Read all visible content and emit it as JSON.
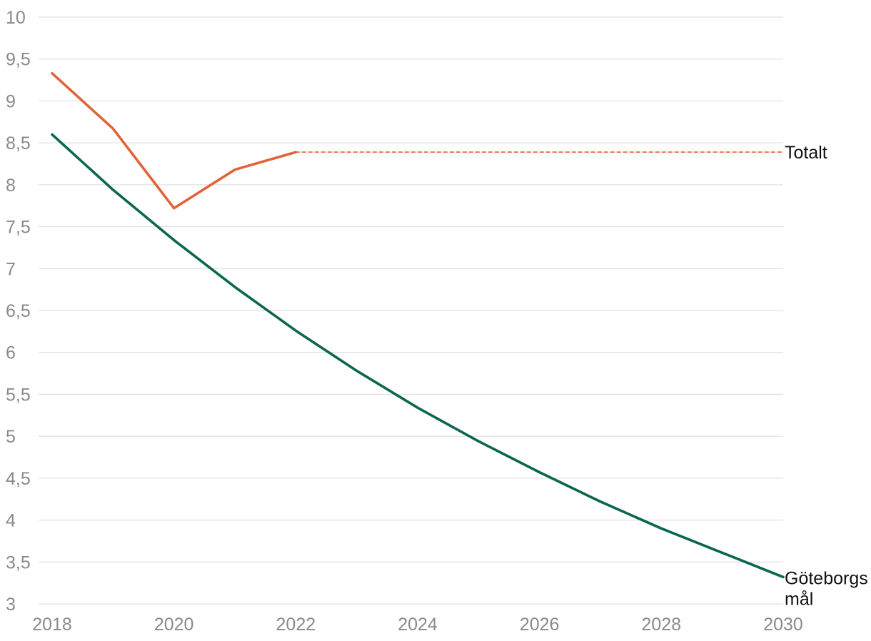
{
  "chart_data": {
    "type": "line",
    "title": "",
    "xlabel": "",
    "ylabel": "",
    "xlim": [
      2018,
      2030
    ],
    "ylim": [
      3,
      10
    ],
    "x_ticks": [
      "2018",
      "2020",
      "2022",
      "2024",
      "2026",
      "2028",
      "2030"
    ],
    "y_ticks": [
      "3",
      "3,5",
      "4",
      "4,5",
      "5",
      "5,5",
      "6",
      "6,5",
      "7",
      "7,5",
      "8",
      "8,5",
      "9",
      "9,5",
      "10"
    ],
    "grid": true,
    "series": [
      {
        "name": "Totalt",
        "color": "#e0643a",
        "style": "solid",
        "x": [
          2018,
          2019,
          2020,
          2021,
          2022
        ],
        "y": [
          9.33,
          8.67,
          7.72,
          8.18,
          8.39
        ]
      },
      {
        "name": "Totalt",
        "color": "#e0643a",
        "style": "dashed",
        "x": [
          2022,
          2030
        ],
        "y": [
          8.39,
          8.39
        ]
      },
      {
        "name": "Göteborgs mål",
        "color": "#0a6650",
        "style": "solid",
        "x": [
          2018,
          2019,
          2020,
          2021,
          2022,
          2023,
          2024,
          2025,
          2026,
          2027,
          2028,
          2029,
          2030
        ],
        "y": [
          8.6,
          7.94,
          7.34,
          6.78,
          6.26,
          5.78,
          5.34,
          4.94,
          4.57,
          4.22,
          3.9,
          3.61,
          3.32
        ]
      }
    ],
    "annotations": [
      {
        "lines": [
          "Totalt"
        ],
        "color": "#111111"
      },
      {
        "lines": [
          "Göteborgs",
          "mål"
        ],
        "color": "#111111"
      }
    ]
  }
}
